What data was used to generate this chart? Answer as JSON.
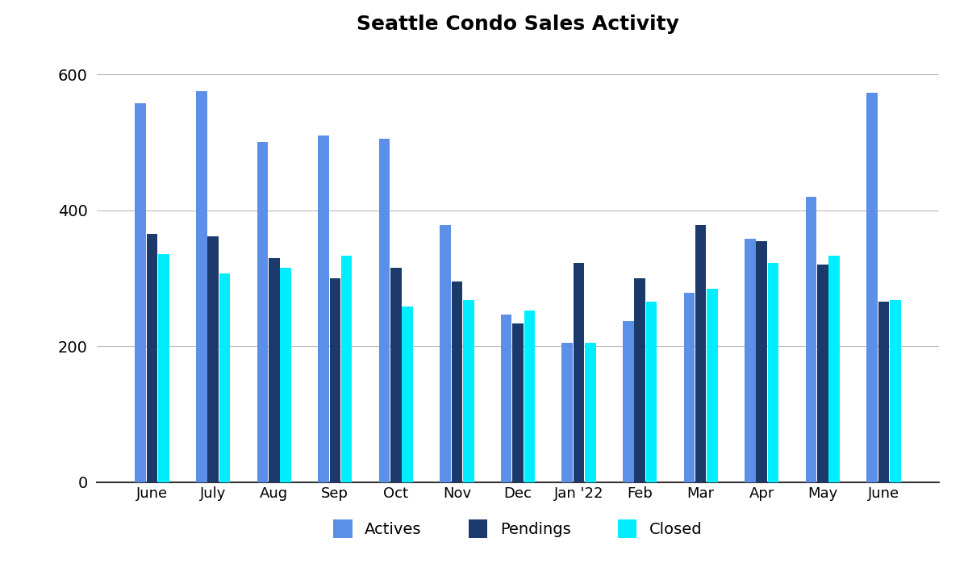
{
  "title": "Seattle Condo Sales Activity",
  "categories": [
    "June",
    "July",
    "Aug",
    "Sep",
    "Oct",
    "Nov",
    "Dec",
    "Jan '22",
    "Feb",
    "Mar",
    "Apr",
    "May",
    "June"
  ],
  "actives": [
    557,
    575,
    500,
    510,
    505,
    378,
    247,
    205,
    237,
    278,
    358,
    420,
    573
  ],
  "pendings": [
    365,
    362,
    330,
    300,
    315,
    295,
    233,
    323,
    300,
    378,
    355,
    320,
    265
  ],
  "closed": [
    335,
    307,
    315,
    333,
    258,
    268,
    252,
    205,
    265,
    285,
    322,
    333,
    268
  ],
  "color_actives": "#5B8FE8",
  "color_pendings": "#1B3A6B",
  "color_closed": "#00EEFF",
  "ylim": [
    0,
    640
  ],
  "yticks": [
    0,
    200,
    400,
    600
  ],
  "title_fontsize": 18,
  "legend_labels": [
    "Actives",
    "Pendings",
    "Closed"
  ],
  "background_color": "#FFFFFF",
  "grid_color": "#BBBBBB"
}
